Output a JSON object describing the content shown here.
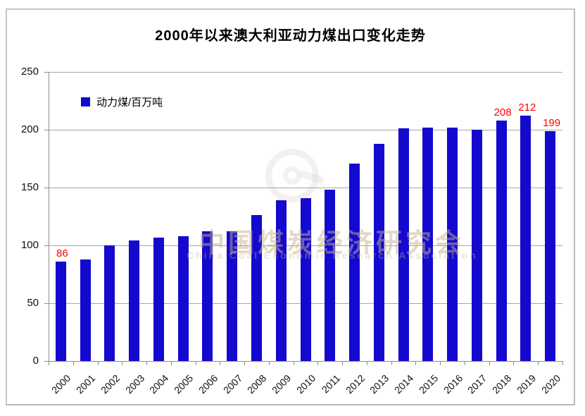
{
  "chart": {
    "title": "2000年以来澳大利亚动力煤出口变化走势",
    "legend": {
      "label": "动力煤/百万吨"
    }
  },
  "watermark": {
    "logo_icon": "china-coal-association-logo",
    "text_cn": "中国煤炭经济研究会",
    "text_en": "China Coal Economic Research Association"
  },
  "colors": {
    "bar": "#1409ce",
    "data_label": "#ff0000",
    "gridline": "#a6a6a6",
    "axis": "#8c8c8c",
    "title": "#000000",
    "frame_border": "#b9b9b9"
  },
  "chart_data": {
    "type": "bar",
    "title": "2000年以来澳大利亚动力煤出口变化走势",
    "series_name": "动力煤/百万吨",
    "categories": [
      "2000",
      "2001",
      "2002",
      "2003",
      "2004",
      "2005",
      "2006",
      "2007",
      "2008",
      "2009",
      "2010",
      "2011",
      "2012",
      "2013",
      "2014",
      "2015",
      "2016",
      "2017",
      "2018",
      "2019",
      "2020"
    ],
    "values": [
      86,
      88,
      100,
      104,
      107,
      108,
      112,
      112,
      126,
      139,
      141,
      148,
      171,
      188,
      201,
      202,
      202,
      200,
      208,
      212,
      199
    ],
    "labeled_points": [
      {
        "category": "2000",
        "label": "86"
      },
      {
        "category": "2018",
        "label": "208"
      },
      {
        "category": "2019",
        "label": "212"
      },
      {
        "category": "2020",
        "label": "199"
      }
    ],
    "xlabel": "",
    "ylabel": "",
    "ylim": [
      0,
      250
    ],
    "yticks": [
      0,
      50,
      100,
      150,
      200,
      250
    ],
    "grid": true,
    "legend_position": "top-left-inside",
    "x_tick_label_rotation_deg": -45
  }
}
